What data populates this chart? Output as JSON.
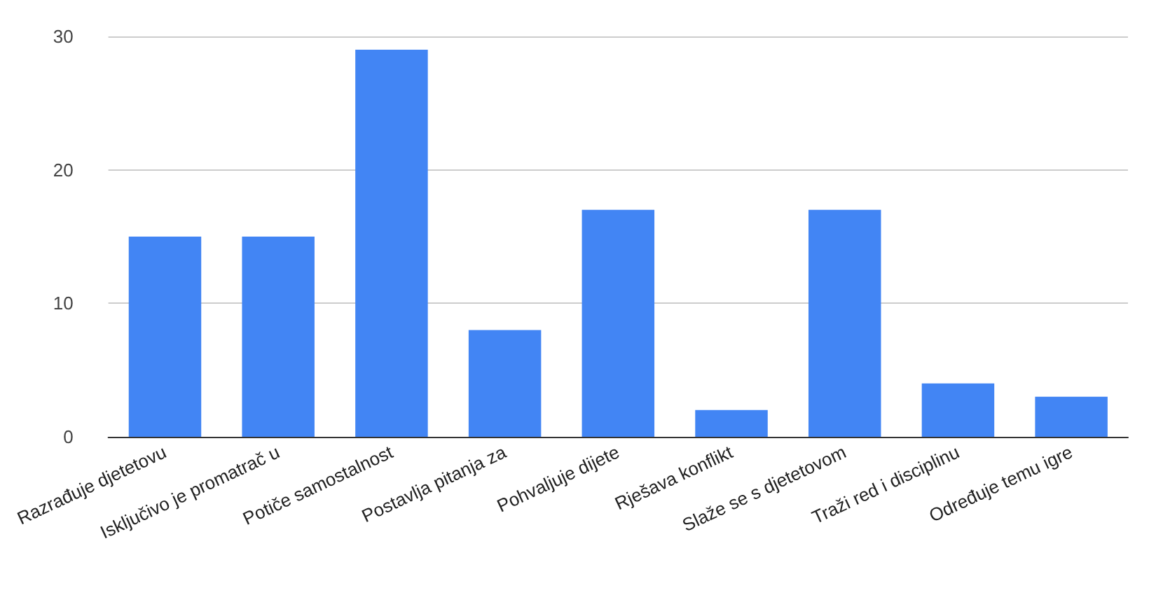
{
  "chart_data": {
    "type": "bar",
    "categories": [
      "Razrađuje djetetovu",
      "Isključivo je promatrač u",
      "Potiče samostalnost",
      "Postavlja pitanja za",
      "Pohvaljuje dijete",
      "Rješava konflikt",
      "Slaže se s djetetovom",
      "Traži red i disciplinu",
      "Određuje temu igre"
    ],
    "values": [
      15,
      15,
      29,
      8,
      17,
      2,
      17,
      4,
      3
    ],
    "color": "#4285f4",
    "ylim": [
      0,
      30
    ],
    "yticks": [
      0,
      10,
      20,
      30
    ],
    "grid": "y"
  }
}
